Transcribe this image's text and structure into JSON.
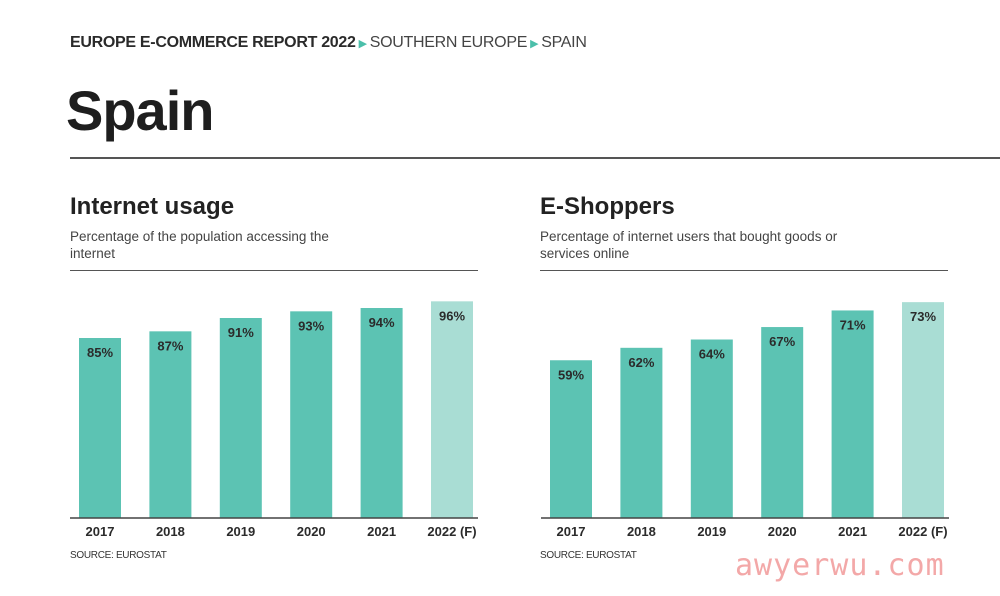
{
  "header": {
    "report": "EUROPE E-COMMERCE REPORT 2022",
    "arrow": "▶",
    "region": "SOUTHERN EUROPE",
    "country": "SPAIN"
  },
  "page_title": "Spain",
  "watermark": "awyerwu.com",
  "colors": {
    "bar": "#5cc3b3",
    "forecast": "#a9ddd4",
    "accent": "#4bbfaa"
  },
  "chart_data": [
    {
      "type": "bar",
      "title": "Internet usage",
      "subtitle": "Percentage of the population accessing the internet",
      "categories": [
        "2017",
        "2018",
        "2019",
        "2020",
        "2021",
        "2022 (F)"
      ],
      "values": [
        85,
        87,
        91,
        93,
        94,
        96
      ],
      "labels": [
        "85%",
        "87%",
        "91%",
        "93%",
        "94%",
        "96%"
      ],
      "forecast_index": 5,
      "ylim": [
        31,
        97
      ],
      "source": "SOURCE: EUROSTAT"
    },
    {
      "type": "bar",
      "title": "E-Shoppers",
      "subtitle": "Percentage of internet users that bought goods or services online",
      "categories": [
        "2017",
        "2018",
        "2019",
        "2020",
        "2021",
        "2022 (F)"
      ],
      "values": [
        59,
        62,
        64,
        67,
        71,
        73
      ],
      "labels": [
        "59%",
        "62%",
        "64%",
        "67%",
        "71%",
        "73%"
      ],
      "forecast_index": 5,
      "ylim": [
        21,
        74
      ],
      "source": "SOURCE: EUROSTAT"
    }
  ]
}
